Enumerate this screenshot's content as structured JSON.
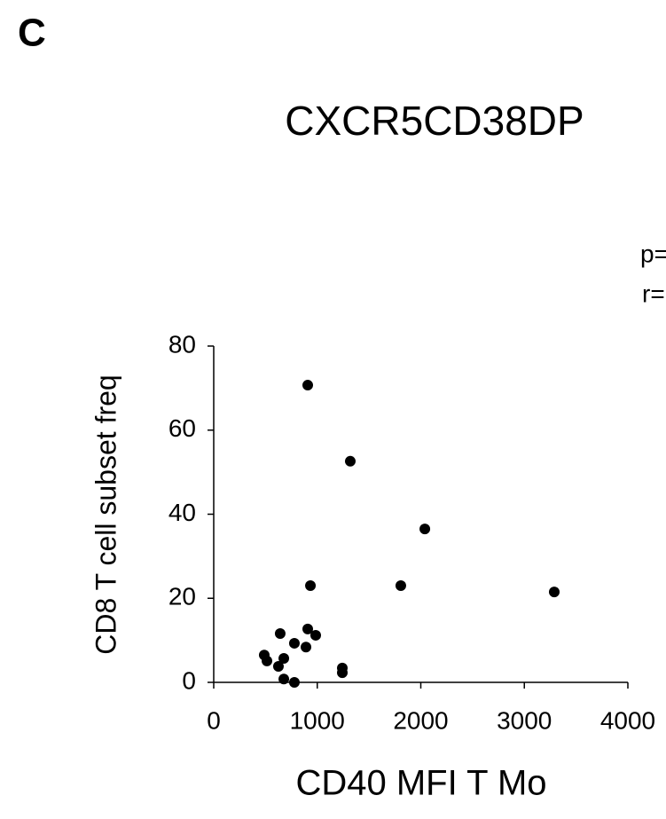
{
  "panel_label": "C",
  "chart_data": {
    "type": "scatter",
    "title": "CXCR5CD38DP",
    "annotations": [
      "p=",
      "r="
    ],
    "x_label": "CD40 MFI T Mo",
    "y_label": "CD8 T cell subset freq",
    "color": "#000000",
    "x": [
      908,
      1319,
      2039,
      934,
      1807,
      3289,
      908,
      642,
      985,
      779,
      891,
      488,
      677,
      514,
      625,
      1242,
      1242,
      677,
      779
    ],
    "values": [
      70.7,
      52.6,
      36.5,
      23.0,
      23.0,
      21.5,
      12.7,
      11.6,
      11.2,
      9.3,
      8.4,
      6.5,
      5.7,
      5.1,
      3.8,
      3.4,
      2.3,
      0.8,
      0
    ],
    "xlim": [
      0,
      4000
    ],
    "xticks": [
      0,
      1000,
      2000,
      3000,
      4000
    ],
    "ylim": [
      0,
      80
    ],
    "yticks": [
      0,
      20,
      40,
      60,
      80
    ],
    "grid": false
  }
}
